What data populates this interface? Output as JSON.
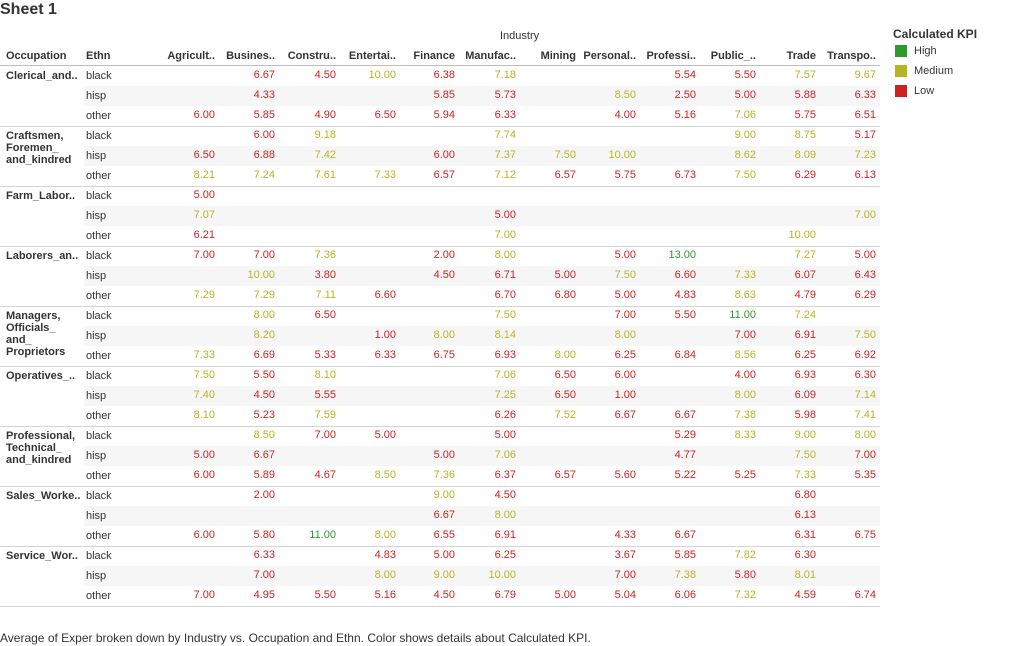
{
  "sheet_title": "Sheet 1",
  "caption": "Average of Exper broken down by Industry vs. Occupation and Ethn.  Color shows details about Calculated KPI.",
  "colors": {
    "High": "#2e9a2e",
    "Medium": "#b5b623",
    "Low": "#cc2222"
  },
  "chart_data": {
    "type": "table",
    "measure": "Average of Exper",
    "column_dimension": "Industry",
    "row_dimensions": [
      "Occupation",
      "Ethn"
    ],
    "row_headers": [
      "Occupation",
      "Ethn"
    ],
    "columns": [
      "Agricult..",
      "Busines..",
      "Constru..",
      "Entertai..",
      "Finance",
      "Manufac..",
      "Mining",
      "Personal..",
      "Professi..",
      "Public_..",
      "Trade",
      "Transpo.."
    ],
    "legend": {
      "title": "Calculated KPI",
      "position": "right",
      "items": [
        {
          "label": "High"
        },
        {
          "label": "Medium"
        },
        {
          "label": "Low"
        }
      ]
    },
    "groups": [
      {
        "occupation": "Clerical_and..",
        "rows": [
          {
            "ethn": "black",
            "values": [
              null,
              "6.67",
              "4.50",
              "10.00",
              "6.38",
              "7.18",
              null,
              null,
              "5.54",
              "5.50",
              "7.57",
              "9.67"
            ],
            "kpi": [
              null,
              "L",
              "L",
              "M",
              "L",
              "M",
              null,
              null,
              "L",
              "L",
              "M",
              "M"
            ]
          },
          {
            "ethn": "hisp",
            "values": [
              null,
              "4.33",
              null,
              null,
              "5.85",
              "5.73",
              null,
              "8.50",
              "2.50",
              "5.00",
              "5.88",
              "6.33"
            ],
            "kpi": [
              null,
              "L",
              null,
              null,
              "L",
              "L",
              null,
              "M",
              "L",
              "L",
              "L",
              "L"
            ]
          },
          {
            "ethn": "other",
            "values": [
              "6.00",
              "5.85",
              "4.90",
              "6.50",
              "5.94",
              "6.33",
              null,
              "4.00",
              "5.16",
              "7.06",
              "5.75",
              "6.51"
            ],
            "kpi": [
              "L",
              "L",
              "L",
              "L",
              "L",
              "L",
              null,
              "L",
              "L",
              "M",
              "L",
              "L"
            ]
          }
        ]
      },
      {
        "occupation": "Craftsmen,\nForemen_\nand_kindred",
        "rows": [
          {
            "ethn": "black",
            "values": [
              null,
              "6.00",
              "9.18",
              null,
              null,
              "7.74",
              null,
              null,
              null,
              "9.00",
              "8.75",
              "5.17"
            ],
            "kpi": [
              null,
              "L",
              "M",
              null,
              null,
              "M",
              null,
              null,
              null,
              "M",
              "M",
              "L"
            ]
          },
          {
            "ethn": "hisp",
            "values": [
              "6.50",
              "6.88",
              "7.42",
              null,
              "6.00",
              "7.37",
              "7.50",
              "10.00",
              null,
              "8.62",
              "8.09",
              "7.23"
            ],
            "kpi": [
              "L",
              "L",
              "M",
              null,
              "L",
              "M",
              "M",
              "M",
              null,
              "M",
              "M",
              "M"
            ]
          },
          {
            "ethn": "other",
            "values": [
              "8.21",
              "7.24",
              "7.61",
              "7.33",
              "6.57",
              "7.12",
              "6.57",
              "5.75",
              "6.73",
              "7.50",
              "6.29",
              "6.13"
            ],
            "kpi": [
              "M",
              "M",
              "M",
              "M",
              "L",
              "M",
              "L",
              "L",
              "L",
              "M",
              "L",
              "L"
            ]
          }
        ]
      },
      {
        "occupation": "Farm_Labor..",
        "rows": [
          {
            "ethn": "black",
            "values": [
              "5.00",
              null,
              null,
              null,
              null,
              null,
              null,
              null,
              null,
              null,
              null,
              null
            ],
            "kpi": [
              "L",
              null,
              null,
              null,
              null,
              null,
              null,
              null,
              null,
              null,
              null,
              null
            ]
          },
          {
            "ethn": "hisp",
            "values": [
              "7.07",
              null,
              null,
              null,
              null,
              "5.00",
              null,
              null,
              null,
              null,
              null,
              "7.00"
            ],
            "kpi": [
              "M",
              null,
              null,
              null,
              null,
              "L",
              null,
              null,
              null,
              null,
              null,
              "M"
            ]
          },
          {
            "ethn": "other",
            "values": [
              "6.21",
              null,
              null,
              null,
              null,
              "7.00",
              null,
              null,
              null,
              null,
              "10.00",
              null
            ],
            "kpi": [
              "L",
              null,
              null,
              null,
              null,
              "M",
              null,
              null,
              null,
              null,
              "M",
              null
            ]
          }
        ]
      },
      {
        "occupation": "Laborers_an..",
        "rows": [
          {
            "ethn": "black",
            "values": [
              "7.00",
              "7.00",
              "7.36",
              null,
              "2.00",
              "8.00",
              null,
              "5.00",
              "13.00",
              null,
              "7.27",
              "5.00"
            ],
            "kpi": [
              "L",
              "L",
              "M",
              null,
              "L",
              "M",
              null,
              "L",
              "H",
              null,
              "M",
              "L"
            ]
          },
          {
            "ethn": "hisp",
            "values": [
              null,
              "10.00",
              "3.80",
              null,
              "4.50",
              "6.71",
              "5.00",
              "7.50",
              "6.60",
              "7.33",
              "6.07",
              "6.43"
            ],
            "kpi": [
              null,
              "M",
              "L",
              null,
              "L",
              "L",
              "L",
              "M",
              "L",
              "M",
              "L",
              "L"
            ]
          },
          {
            "ethn": "other",
            "values": [
              "7.29",
              "7.29",
              "7.11",
              "6.60",
              null,
              "6.70",
              "6.80",
              "5.00",
              "4.83",
              "8.63",
              "4.79",
              "6.29"
            ],
            "kpi": [
              "M",
              "M",
              "M",
              "L",
              null,
              "L",
              "L",
              "L",
              "L",
              "M",
              "L",
              "L"
            ]
          }
        ]
      },
      {
        "occupation": "Managers,\nOfficials_\nand_\nProprietors",
        "rows": [
          {
            "ethn": "black",
            "values": [
              null,
              "8.00",
              "6.50",
              null,
              null,
              "7.50",
              null,
              "7.00",
              "5.50",
              "11.00",
              "7.24",
              null
            ],
            "kpi": [
              null,
              "M",
              "L",
              null,
              null,
              "M",
              null,
              "L",
              "L",
              "H",
              "M",
              null
            ]
          },
          {
            "ethn": "hisp",
            "values": [
              null,
              "8.20",
              null,
              "1.00",
              "8.00",
              "8.14",
              null,
              "8.00",
              null,
              "7.00",
              "6.91",
              "7.50"
            ],
            "kpi": [
              null,
              "M",
              null,
              "L",
              "M",
              "M",
              null,
              "M",
              null,
              "L",
              "L",
              "M"
            ]
          },
          {
            "ethn": "other",
            "values": [
              "7.33",
              "6.69",
              "5.33",
              "6.33",
              "6.75",
              "6.93",
              "8.00",
              "6.25",
              "6.84",
              "8.56",
              "6.25",
              "6.92"
            ],
            "kpi": [
              "M",
              "L",
              "L",
              "L",
              "L",
              "L",
              "M",
              "L",
              "L",
              "M",
              "L",
              "L"
            ]
          }
        ]
      },
      {
        "occupation": "Operatives_..",
        "rows": [
          {
            "ethn": "black",
            "values": [
              "7.50",
              "5.50",
              "8.10",
              null,
              null,
              "7.06",
              "6.50",
              "6.00",
              null,
              "4.00",
              "6.93",
              "6.30"
            ],
            "kpi": [
              "M",
              "L",
              "M",
              null,
              null,
              "M",
              "L",
              "L",
              null,
              "L",
              "L",
              "L"
            ]
          },
          {
            "ethn": "hisp",
            "values": [
              "7.40",
              "4.50",
              "5.55",
              null,
              null,
              "7.25",
              "6.50",
              "1.00",
              null,
              "8.00",
              "6.09",
              "7.14"
            ],
            "kpi": [
              "M",
              "L",
              "L",
              null,
              null,
              "M",
              "L",
              "L",
              null,
              "M",
              "L",
              "M"
            ]
          },
          {
            "ethn": "other",
            "values": [
              "8.10",
              "5.23",
              "7.59",
              null,
              null,
              "6.26",
              "7.52",
              "6.67",
              "6.67",
              "7.38",
              "5.98",
              "7.41"
            ],
            "kpi": [
              "M",
              "L",
              "M",
              null,
              null,
              "L",
              "M",
              "L",
              "L",
              "M",
              "L",
              "M"
            ]
          }
        ]
      },
      {
        "occupation": "Professional,\nTechnical_\nand_kindred",
        "rows": [
          {
            "ethn": "black",
            "values": [
              null,
              "8.50",
              "7.00",
              "5.00",
              null,
              "5.00",
              null,
              null,
              "5.29",
              "8.33",
              "9.00",
              "8.00"
            ],
            "kpi": [
              null,
              "M",
              "L",
              "L",
              null,
              "L",
              null,
              null,
              "L",
              "M",
              "M",
              "M"
            ]
          },
          {
            "ethn": "hisp",
            "values": [
              "5.00",
              "6.67",
              null,
              null,
              "5.00",
              "7.06",
              null,
              null,
              "4.77",
              null,
              "7.50",
              "7.00"
            ],
            "kpi": [
              "L",
              "L",
              null,
              null,
              "L",
              "M",
              null,
              null,
              "L",
              null,
              "M",
              "L"
            ]
          },
          {
            "ethn": "other",
            "values": [
              "6.00",
              "5.89",
              "4.67",
              "8.50",
              "7.36",
              "6.37",
              "6.57",
              "5.60",
              "5.22",
              "5.25",
              "7.33",
              "5.35"
            ],
            "kpi": [
              "L",
              "L",
              "L",
              "M",
              "M",
              "L",
              "L",
              "L",
              "L",
              "L",
              "M",
              "L"
            ]
          }
        ]
      },
      {
        "occupation": "Sales_Worke..",
        "rows": [
          {
            "ethn": "black",
            "values": [
              null,
              "2.00",
              null,
              null,
              "9.00",
              "4.50",
              null,
              null,
              null,
              null,
              "6.80",
              null
            ],
            "kpi": [
              null,
              "L",
              null,
              null,
              "M",
              "L",
              null,
              null,
              null,
              null,
              "L",
              null
            ]
          },
          {
            "ethn": "hisp",
            "values": [
              null,
              null,
              null,
              null,
              "6.67",
              "8.00",
              null,
              null,
              null,
              null,
              "6.13",
              null
            ],
            "kpi": [
              null,
              null,
              null,
              null,
              "L",
              "M",
              null,
              null,
              null,
              null,
              "L",
              null
            ]
          },
          {
            "ethn": "other",
            "values": [
              "6.00",
              "5.80",
              "11.00",
              "8.00",
              "6.55",
              "6.91",
              null,
              "4.33",
              "6.67",
              null,
              "6.31",
              "6.75"
            ],
            "kpi": [
              "L",
              "L",
              "H",
              "M",
              "L",
              "L",
              null,
              "L",
              "L",
              null,
              "L",
              "L"
            ]
          }
        ]
      },
      {
        "occupation": "Service_Wor..",
        "rows": [
          {
            "ethn": "black",
            "values": [
              null,
              "6.33",
              null,
              "4.83",
              "5.00",
              "6.25",
              null,
              "3.67",
              "5.85",
              "7.82",
              "6.30",
              null
            ],
            "kpi": [
              null,
              "L",
              null,
              "L",
              "L",
              "L",
              null,
              "L",
              "L",
              "M",
              "L",
              null
            ]
          },
          {
            "ethn": "hisp",
            "values": [
              null,
              "7.00",
              null,
              "8.00",
              "9.00",
              "10.00",
              null,
              "7.00",
              "7.38",
              "5.80",
              "8.01",
              null
            ],
            "kpi": [
              null,
              "L",
              null,
              "M",
              "M",
              "M",
              null,
              "L",
              "M",
              "L",
              "M",
              null
            ]
          },
          {
            "ethn": "other",
            "values": [
              "7.00",
              "4.95",
              "5.50",
              "5.16",
              "4.50",
              "6.79",
              "5.00",
              "5.04",
              "6.06",
              "7.32",
              "4.59",
              "6.74"
            ],
            "kpi": [
              "L",
              "L",
              "L",
              "L",
              "L",
              "L",
              "L",
              "L",
              "L",
              "M",
              "L",
              "L"
            ]
          }
        ]
      }
    ]
  }
}
